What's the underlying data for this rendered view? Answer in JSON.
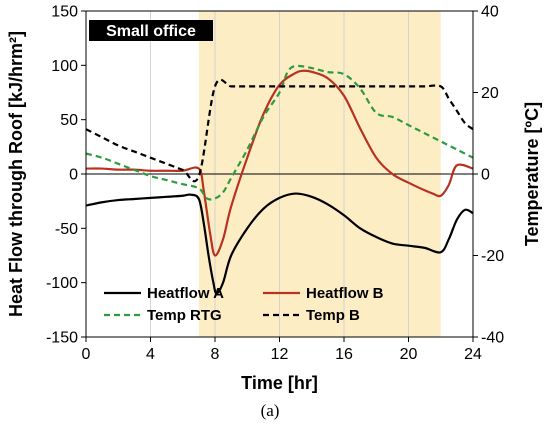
{
  "chart_data": {
    "type": "line",
    "title": "Small office",
    "caption": "(a)",
    "xlabel": "Time [hr]",
    "ylabel_left": "Heat Flow through Roof [kJ/hrm²]",
    "ylabel_right": "Temperature [ºC]",
    "xlim": [
      0,
      24
    ],
    "ylim_left": [
      -150,
      150
    ],
    "ylim_right": [
      -40,
      40
    ],
    "x_ticks": [
      0,
      4,
      8,
      12,
      16,
      20,
      24
    ],
    "y_ticks_left": [
      150,
      100,
      50,
      0,
      -50,
      -100,
      -150
    ],
    "y_ticks_right": [
      40,
      20,
      0,
      -20,
      -40
    ],
    "shaded_x_range": [
      7,
      22
    ],
    "shade_color": "#fdedc4",
    "gridlines": "vertical",
    "legend_placement": "bottom",
    "series": [
      {
        "name": "Heatflow A",
        "axis": "left",
        "color": "#000000",
        "style": "solid",
        "x": [
          0,
          1,
          2,
          3,
          4,
          5,
          6,
          6.5,
          7,
          7.3,
          7.6,
          7.9,
          8.1,
          8.5,
          9,
          10,
          11,
          12,
          13,
          14,
          15,
          16,
          17,
          18,
          19,
          20,
          21,
          22,
          22.5,
          23,
          23.5,
          24
        ],
        "y": [
          -29,
          -26,
          -24,
          -23,
          -22,
          -21,
          -20,
          -19,
          -23,
          -45,
          -75,
          -100,
          -110,
          -100,
          -75,
          -50,
          -32,
          -22,
          -18,
          -21,
          -28,
          -38,
          -50,
          -58,
          -64,
          -66,
          -68,
          -72,
          -60,
          -42,
          -33,
          -36
        ]
      },
      {
        "name": "Heatflow B",
        "axis": "left",
        "color": "#b83222",
        "style": "solid",
        "x": [
          0,
          1,
          2,
          3,
          4,
          5,
          6,
          7,
          7.3,
          7.7,
          8,
          8.5,
          9,
          10,
          11,
          12,
          13,
          13.5,
          14,
          15,
          16,
          17,
          18,
          19,
          20,
          21,
          21.5,
          22,
          22.5,
          23,
          24
        ],
        "y": [
          5,
          5,
          4,
          4,
          3,
          3,
          3,
          5,
          -15,
          -55,
          -75,
          -60,
          -30,
          15,
          55,
          82,
          93,
          95,
          94,
          88,
          72,
          42,
          15,
          0,
          -8,
          -15,
          -18,
          -20,
          -10,
          8,
          5
        ]
      },
      {
        "name": "Temp RTG",
        "axis": "right",
        "color": "#2e9b3e",
        "style": "dashed",
        "x": [
          0,
          1,
          2,
          3,
          4,
          5,
          6,
          7,
          7.5,
          8,
          8.5,
          9,
          10,
          11,
          12,
          12.5,
          13,
          14,
          15,
          16,
          17,
          18,
          19,
          20,
          21,
          22,
          23,
          24
        ],
        "y": [
          5,
          4,
          2.5,
          1,
          -0.5,
          -1.5,
          -2.5,
          -3.5,
          -6,
          -6,
          -4.5,
          -1,
          6,
          14,
          20,
          25,
          26.5,
          26,
          25,
          24.5,
          21,
          15,
          14,
          12,
          10,
          8,
          6,
          4
        ]
      },
      {
        "name": "Temp B",
        "axis": "right",
        "color": "#000000",
        "style": "dashed",
        "x": [
          0,
          1,
          2,
          3,
          4,
          5,
          6,
          7,
          8,
          9,
          10,
          11,
          12,
          13,
          14,
          15,
          16,
          17,
          18,
          19,
          20,
          21,
          22,
          22.5,
          23,
          23.5,
          24
        ],
        "y": [
          11,
          9,
          7,
          5.5,
          4,
          2.5,
          1,
          -0.5,
          21.5,
          21.5,
          21.5,
          21.5,
          21.5,
          21.5,
          21.5,
          21.5,
          21.5,
          21.5,
          21.5,
          21.5,
          21.5,
          21.5,
          21.5,
          18.5,
          15.5,
          12.5,
          11
        ]
      }
    ]
  }
}
